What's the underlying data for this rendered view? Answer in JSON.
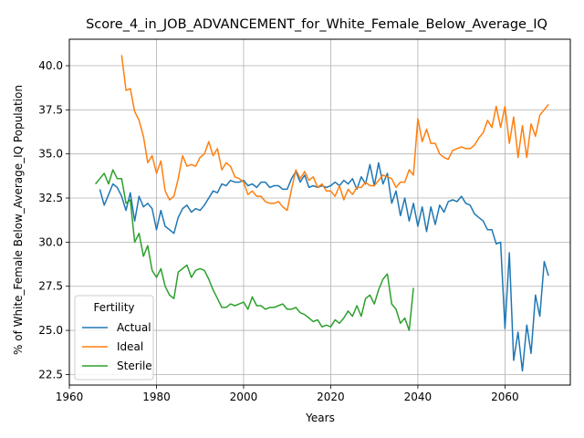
{
  "chart_data": {
    "type": "line",
    "title": "Score_4_in_JOB_ADVANCEMENT_for_White_Female_Below_Average_IQ",
    "xlabel": "Years",
    "ylabel": "% of White_Female Below_Average_IQ Population",
    "xlim": [
      1960,
      2075
    ],
    "ylim": [
      21.9,
      41.5
    ],
    "xticks": [
      1960,
      1980,
      2000,
      2020,
      2040,
      2060
    ],
    "yticks": [
      22.5,
      25.0,
      27.5,
      30.0,
      32.5,
      35.0,
      37.5,
      40.0
    ],
    "ytick_labels": [
      "22.5",
      "25.0",
      "27.5",
      "30.0",
      "32.5",
      "35.0",
      "37.5",
      "40.0"
    ],
    "grid": true,
    "legend": {
      "title": "Fertility",
      "placement": "lower-left"
    },
    "colors": {
      "actual": "#1f77b4",
      "ideal": "#ff7f0e",
      "sterile": "#2ca02c"
    },
    "series": [
      {
        "name": "Actual",
        "color": "#1f77b4",
        "x": [
          1967,
          1968,
          1969,
          1970,
          1971,
          1972,
          1973,
          1974,
          1975,
          1976,
          1977,
          1978,
          1979,
          1980,
          1981,
          1982,
          1983,
          1984,
          1985,
          1986,
          1987,
          1988,
          1989,
          1990,
          1991,
          1992,
          1993,
          1994,
          1995,
          1996,
          1997,
          1998,
          1999,
          2000,
          2001,
          2002,
          2003,
          2004,
          2005,
          2006,
          2007,
          2008,
          2009,
          2010,
          2011,
          2012,
          2013,
          2014,
          2015,
          2016,
          2017,
          2018,
          2019,
          2020,
          2021,
          2022,
          2023,
          2024,
          2025,
          2026,
          2027,
          2028,
          2029,
          2030,
          2031,
          2032,
          2033,
          2034,
          2035,
          2036,
          2037,
          2038,
          2039,
          2040,
          2041,
          2042,
          2043,
          2044,
          2045,
          2046,
          2047,
          2048,
          2049,
          2050,
          2051,
          2052,
          2053,
          2054,
          2055,
          2056,
          2057,
          2058,
          2059,
          2060,
          2061,
          2062,
          2063,
          2064,
          2065,
          2066,
          2067,
          2068,
          2069,
          2070
        ],
        "values": [
          33.0,
          32.1,
          32.7,
          33.3,
          33.1,
          32.6,
          31.8,
          32.8,
          31.2,
          32.6,
          32.0,
          32.2,
          31.9,
          30.7,
          31.8,
          30.9,
          30.7,
          30.5,
          31.4,
          31.9,
          32.1,
          31.7,
          31.9,
          31.8,
          32.1,
          32.5,
          32.9,
          32.8,
          33.3,
          33.2,
          33.5,
          33.4,
          33.4,
          33.5,
          33.2,
          33.3,
          33.1,
          33.4,
          33.4,
          33.1,
          33.2,
          33.2,
          33.0,
          33.0,
          33.6,
          34.0,
          33.4,
          33.8,
          33.1,
          33.2,
          33.1,
          33.2,
          33.1,
          33.2,
          33.4,
          33.2,
          33.5,
          33.3,
          33.6,
          33.0,
          33.7,
          33.3,
          34.4,
          33.2,
          34.5,
          33.3,
          33.9,
          32.2,
          32.9,
          31.5,
          32.5,
          31.2,
          32.2,
          30.9,
          32.0,
          30.6,
          32.0,
          31.0,
          32.1,
          31.7,
          32.3,
          32.4,
          32.3,
          32.6,
          32.2,
          32.1,
          31.6,
          31.4,
          31.2,
          30.7,
          30.7,
          29.9,
          30.0,
          25.1,
          29.4,
          23.3,
          24.9,
          22.7,
          25.3,
          23.7,
          27.0,
          25.8,
          28.9,
          28.1
        ]
      },
      {
        "name": "Ideal",
        "color": "#ff7f0e",
        "x": [
          1972,
          1973,
          1974,
          1975,
          1976,
          1977,
          1978,
          1979,
          1980,
          1981,
          1982,
          1983,
          1984,
          1985,
          1986,
          1987,
          1988,
          1989,
          1990,
          1991,
          1992,
          1993,
          1994,
          1995,
          1996,
          1997,
          1998,
          1999,
          2000,
          2001,
          2002,
          2003,
          2004,
          2005,
          2006,
          2007,
          2008,
          2009,
          2010,
          2011,
          2012,
          2013,
          2014,
          2015,
          2016,
          2017,
          2018,
          2019,
          2020,
          2021,
          2022,
          2023,
          2024,
          2025,
          2026,
          2027,
          2028,
          2029,
          2030,
          2031,
          2032,
          2033,
          2034,
          2035,
          2036,
          2037,
          2038,
          2039,
          2040,
          2041,
          2042,
          2043,
          2044,
          2045,
          2046,
          2047,
          2048,
          2049,
          2050,
          2051,
          2052,
          2053,
          2054,
          2055,
          2056,
          2057,
          2058,
          2059,
          2060,
          2061,
          2062,
          2063,
          2064,
          2065,
          2066,
          2067,
          2068,
          2069,
          2070
        ],
        "values": [
          40.6,
          38.6,
          38.7,
          37.4,
          36.9,
          36.0,
          34.5,
          34.9,
          33.9,
          34.6,
          32.9,
          32.4,
          32.6,
          33.6,
          34.9,
          34.3,
          34.4,
          34.3,
          34.8,
          35.0,
          35.7,
          34.9,
          35.3,
          34.1,
          34.5,
          34.3,
          33.7,
          33.6,
          33.4,
          32.7,
          32.9,
          32.6,
          32.6,
          32.3,
          32.2,
          32.2,
          32.3,
          32.0,
          31.8,
          33.0,
          34.1,
          33.6,
          34.0,
          33.5,
          33.7,
          33.1,
          33.3,
          32.9,
          32.9,
          32.6,
          33.2,
          32.4,
          33.0,
          32.7,
          33.1,
          33.1,
          33.4,
          33.2,
          33.2,
          33.5,
          33.8,
          33.7,
          33.6,
          33.1,
          33.4,
          33.4,
          34.1,
          33.8,
          37.0,
          35.7,
          36.4,
          35.6,
          35.6,
          35.0,
          34.8,
          34.7,
          35.2,
          35.3,
          35.4,
          35.3,
          35.3,
          35.5,
          35.9,
          36.2,
          36.9,
          36.5,
          37.7,
          36.5,
          37.7,
          35.6,
          37.1,
          34.8,
          36.6,
          34.8,
          36.7,
          36.0,
          37.2,
          37.5,
          37.8
        ]
      },
      {
        "name": "Sterile",
        "color": "#2ca02c",
        "x": [
          1966,
          1967,
          1968,
          1969,
          1970,
          1971,
          1972,
          1973,
          1974,
          1975,
          1976,
          1977,
          1978,
          1979,
          1980,
          1981,
          1982,
          1983,
          1984,
          1985,
          1986,
          1987,
          1988,
          1989,
          1990,
          1991,
          1992,
          1993,
          1994,
          1995,
          1996,
          1997,
          1998,
          1999,
          2000,
          2001,
          2002,
          2003,
          2004,
          2005,
          2006,
          2007,
          2008,
          2009,
          2010,
          2011,
          2012,
          2013,
          2014,
          2015,
          2016,
          2017,
          2018,
          2019,
          2020,
          2021,
          2022,
          2023,
          2024,
          2025,
          2026,
          2027,
          2028,
          2029,
          2030,
          2031,
          2032,
          2033,
          2034,
          2035,
          2036,
          2037,
          2038,
          2039
        ],
        "values": [
          33.3,
          33.6,
          33.9,
          33.3,
          34.1,
          33.6,
          33.6,
          32.2,
          32.4,
          30.0,
          30.5,
          29.2,
          29.8,
          28.4,
          28.0,
          28.5,
          27.5,
          27.0,
          26.8,
          28.3,
          28.5,
          28.7,
          28.0,
          28.4,
          28.5,
          28.4,
          27.9,
          27.3,
          26.8,
          26.3,
          26.3,
          26.5,
          26.4,
          26.5,
          26.6,
          26.2,
          26.9,
          26.4,
          26.4,
          26.2,
          26.3,
          26.3,
          26.4,
          26.5,
          26.2,
          26.2,
          26.3,
          26.0,
          25.9,
          25.7,
          25.5,
          25.6,
          25.2,
          25.3,
          25.2,
          25.6,
          25.4,
          25.7,
          26.1,
          25.8,
          26.4,
          25.8,
          26.8,
          27.0,
          26.5,
          27.3,
          27.9,
          28.2,
          26.5,
          26.2,
          25.4,
          25.7,
          25.0,
          27.4
        ]
      }
    ]
  }
}
